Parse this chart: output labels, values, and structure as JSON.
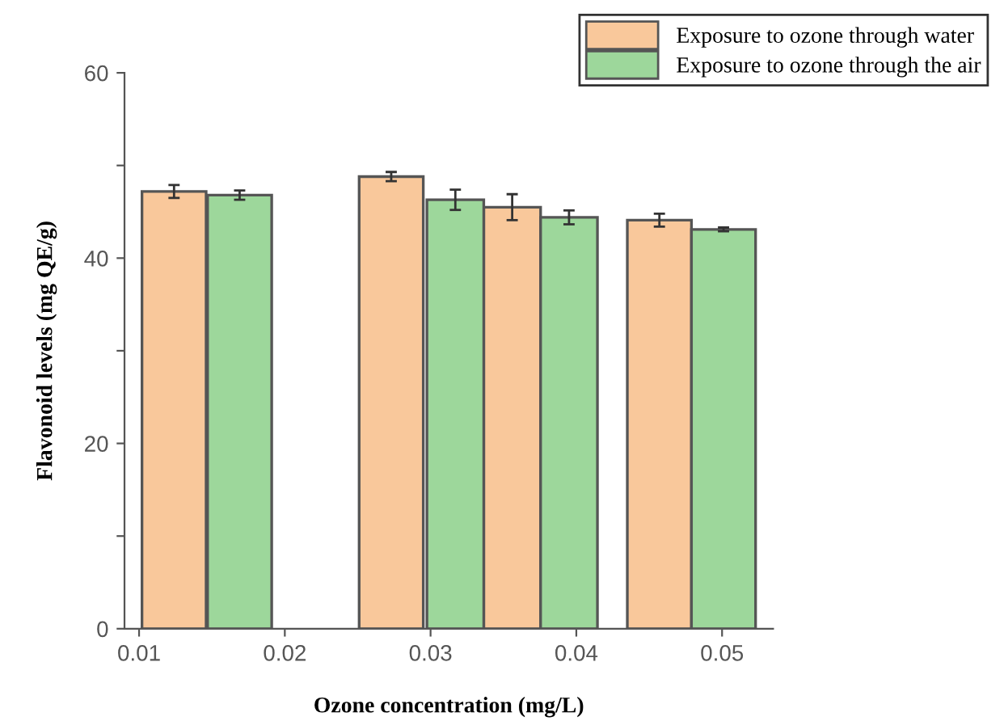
{
  "chart_data": {
    "type": "bar",
    "xlabel": "Ozone concentration (mg/L)",
    "ylabel": "Flavonoid levels (mg QE/g)",
    "xlim": [
      0.009,
      0.0535
    ],
    "xticks": [
      0.01,
      0.02,
      0.03,
      0.04,
      0.05
    ],
    "ylim": [
      0,
      60
    ],
    "yticks": [
      0,
      {
        "value": 10,
        "label": null
      },
      20,
      {
        "value": 30,
        "label": null
      },
      40,
      {
        "value": 50,
        "label": null
      },
      60
    ],
    "grid": false,
    "legend": "top right",
    "series": [
      {
        "name": "Exposure to ozone through water",
        "color": "#f9c89b",
        "x": [
          0.0124,
          0.0273,
          0.0356,
          0.0457
        ],
        "values": [
          47.2,
          48.8,
          45.5,
          44.1
        ],
        "errors": [
          0.7,
          0.5,
          1.4,
          0.7
        ]
      },
      {
        "name": "Exposure to ozone through the air",
        "color": "#9dd79b",
        "x": [
          0.0169,
          0.0317,
          0.0395,
          0.0501
        ],
        "values": [
          46.8,
          46.3,
          44.4,
          43.1
        ],
        "errors": [
          0.5,
          1.1,
          0.75,
          0.2
        ]
      }
    ]
  }
}
